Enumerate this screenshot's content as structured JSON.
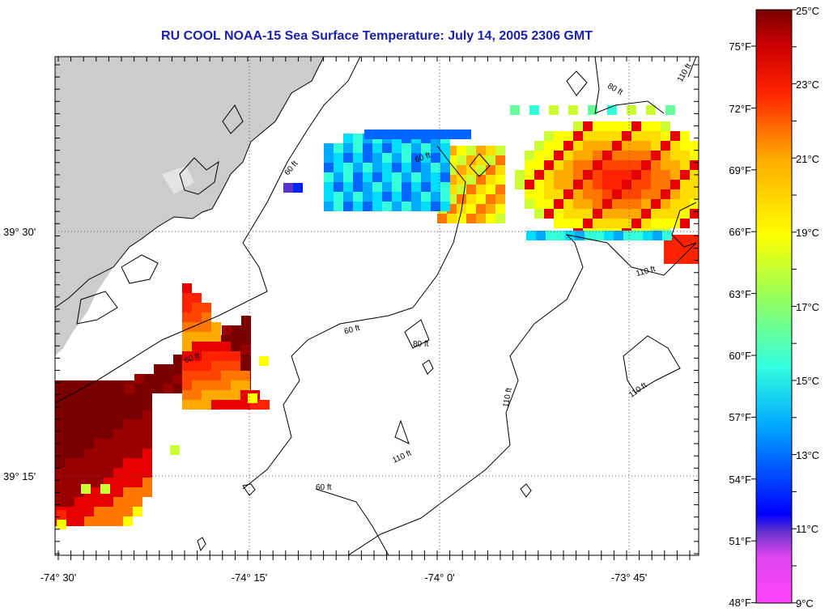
{
  "title": "RU COOL  NOAA-15  Sea Surface Temperature:  July 14, 2005 2306 GMT",
  "axes": {
    "x_ticks": [
      "-74° 30'",
      "-74° 15'",
      "-74° 0'",
      "-73° 45'"
    ],
    "y_ticks": [
      "39° 30'",
      "39° 15'"
    ]
  },
  "contour_labels": [
    "60 ft",
    "80 ft",
    "110 ft"
  ],
  "colorbar": {
    "celsius_labels": [
      "25°C",
      "23°C",
      "21°C",
      "19°C",
      "17°C",
      "15°C",
      "13°C",
      "11°C",
      "9°C"
    ],
    "fahrenheit_labels": [
      "75°F",
      "72°F",
      "69°F",
      "66°F",
      "63°F",
      "60°F",
      "57°F",
      "54°F",
      "51°F",
      "48°F"
    ],
    "range_c": [
      9,
      25
    ],
    "colors": [
      "#ff44ff",
      "#6633cc",
      "#0000ff",
      "#00aaff",
      "#33ffcc",
      "#ccff33",
      "#ffff00",
      "#ffaa00",
      "#ff2200",
      "#cc0000",
      "#7a0000"
    ]
  },
  "colors": {
    "land": "#cccccc",
    "coast": "#000000",
    "title": "#1a20b0"
  }
}
